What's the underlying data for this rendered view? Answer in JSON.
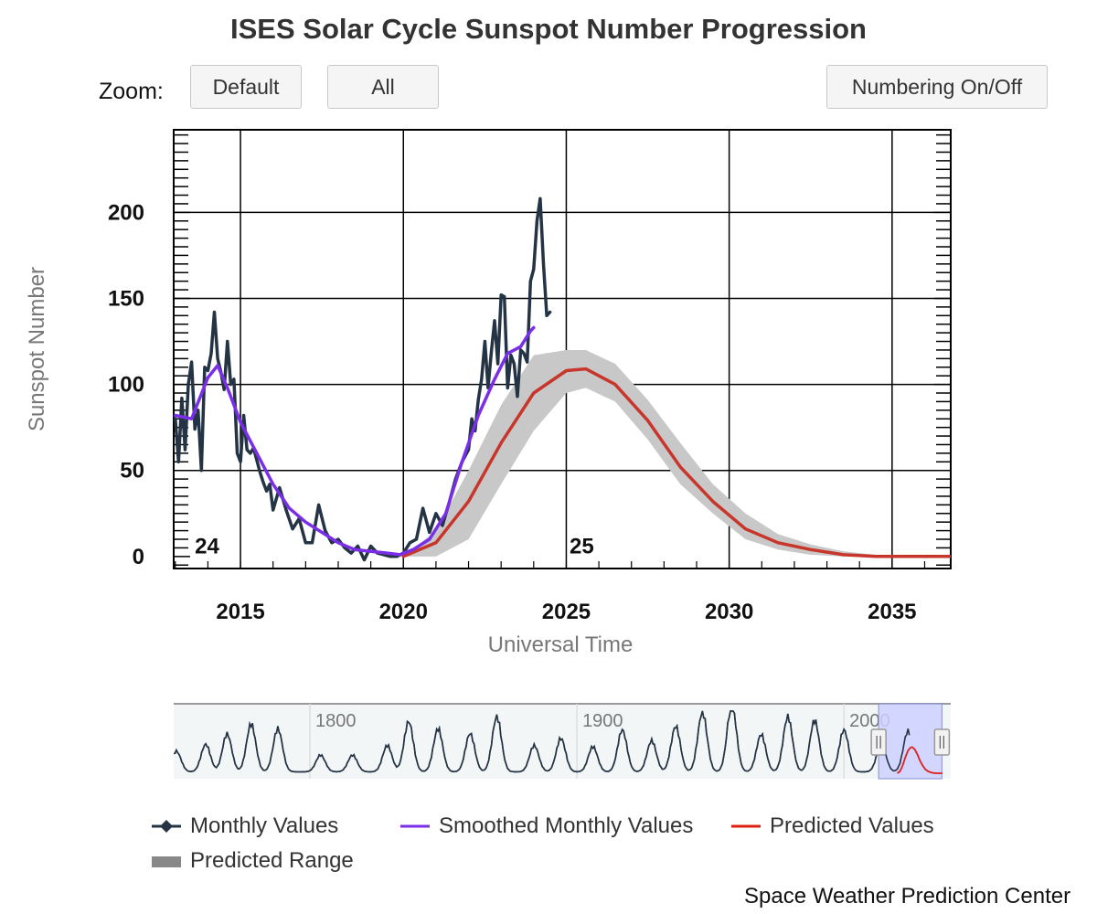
{
  "title": "ISES Solar Cycle Sunspot Number Progression",
  "zoom": {
    "label": "Zoom:",
    "default_label": "Default",
    "all_label": "All"
  },
  "numbering_label": "Numbering On/Off",
  "credit": "Space Weather Prediction Center",
  "colors": {
    "monthly": "#253445",
    "smoothed": "#7a2ee8",
    "predicted": "#c8352b",
    "range": "#c8c8c8",
    "navigator_fill": "#ccd0ff"
  },
  "legend": [
    {
      "label": "Monthly Values",
      "icon": "diamond-line-icon",
      "color": "#253445"
    },
    {
      "label": "Smoothed Monthly Values",
      "icon": "line-icon",
      "color": "#7a2ee8"
    },
    {
      "label": "Predicted Values",
      "icon": "line-icon",
      "color": "#e02010"
    },
    {
      "label": "Predicted Range",
      "icon": "band-icon",
      "color": "#888888"
    }
  ],
  "navigator": {
    "tick_labels": [
      "1800",
      "1900",
      "2000"
    ],
    "tick_values": [
      1800,
      1900,
      2000
    ],
    "xlim": [
      1749,
      2040
    ],
    "selected": [
      2013.0,
      2036.7
    ]
  },
  "chart_data": {
    "type": "line",
    "title": "ISES Solar Cycle Sunspot Number Progression",
    "xlabel": "Universal Time",
    "ylabel": "Sunspot Number",
    "xlim": [
      2012.95,
      2036.8
    ],
    "ylim": [
      -7,
      248
    ],
    "x_ticks": [
      2015,
      2020,
      2025,
      2030,
      2035
    ],
    "x_tick_labels": [
      "2015",
      "2020",
      "2025",
      "2030",
      "2035"
    ],
    "y_ticks": [
      0,
      50,
      100,
      150,
      200
    ],
    "y_tick_labels": [
      "0",
      "50",
      "100",
      "150",
      "200"
    ],
    "grid": true,
    "cycle_labels": [
      {
        "text": "24",
        "x": 2013.6,
        "y": 6
      },
      {
        "text": "25",
        "x": 2025.1,
        "y": 6
      }
    ],
    "series": [
      {
        "name": "Monthly Values",
        "x": [
          2013.0,
          2013.1,
          2013.2,
          2013.3,
          2013.4,
          2013.5,
          2013.6,
          2013.7,
          2013.8,
          2013.9,
          2014.0,
          2014.1,
          2014.2,
          2014.3,
          2014.4,
          2014.5,
          2014.6,
          2014.7,
          2014.8,
          2014.9,
          2015.0,
          2015.1,
          2015.2,
          2015.3,
          2015.4,
          2015.5,
          2015.6,
          2015.7,
          2015.8,
          2015.9,
          2016.0,
          2016.2,
          2016.4,
          2016.6,
          2016.8,
          2017.0,
          2017.2,
          2017.4,
          2017.6,
          2017.8,
          2018.0,
          2018.2,
          2018.4,
          2018.6,
          2018.8,
          2019.0,
          2019.2,
          2019.4,
          2019.6,
          2019.8,
          2020.0,
          2020.2,
          2020.4,
          2020.6,
          2020.8,
          2021.0,
          2021.2,
          2021.4,
          2021.6,
          2021.8,
          2022.0,
          2022.1,
          2022.2,
          2022.3,
          2022.4,
          2022.5,
          2022.6,
          2022.7,
          2022.8,
          2022.9,
          2023.0,
          2023.1,
          2023.2,
          2023.3,
          2023.4,
          2023.5,
          2023.6,
          2023.7,
          2023.8,
          2023.9,
          2024.0,
          2024.1,
          2024.2,
          2024.3,
          2024.4,
          2024.5
        ],
        "y": [
          80,
          55,
          92,
          62,
          100,
          113,
          74,
          85,
          50,
          110,
          108,
          118,
          142,
          115,
          107,
          97,
          125,
          100,
          103,
          60,
          55,
          82,
          62,
          60,
          63,
          56,
          49,
          43,
          38,
          42,
          27,
          40,
          27,
          16,
          22,
          8,
          8,
          30,
          15,
          8,
          10,
          5,
          2,
          6,
          -2,
          6,
          2,
          1,
          0,
          0,
          2,
          8,
          10,
          28,
          14,
          25,
          18,
          31,
          45,
          55,
          62,
          80,
          73,
          91,
          103,
          125,
          98,
          119,
          137,
          112,
          152,
          151,
          98,
          117,
          112,
          93,
          120,
          118,
          113,
          160,
          167,
          195,
          208,
          170,
          140,
          142
        ]
      },
      {
        "name": "Smoothed Monthly Values",
        "x": [
          2013.0,
          2013.5,
          2014.0,
          2014.3,
          2014.6,
          2015.0,
          2015.5,
          2016.0,
          2016.5,
          2017.0,
          2017.5,
          2018.0,
          2018.5,
          2019.0,
          2019.5,
          2019.9,
          2020.3,
          2020.8,
          2021.3,
          2021.8,
          2022.3,
          2022.8,
          2023.2,
          2023.6,
          2023.9,
          2024.0
        ],
        "y": [
          82,
          80,
          104,
          111,
          98,
          78,
          60,
          42,
          28,
          20,
          14,
          8,
          4,
          3,
          2,
          1,
          4,
          10,
          25,
          55,
          82,
          103,
          118,
          122,
          131,
          133
        ]
      },
      {
        "name": "Predicted Values",
        "x": [
          2020.0,
          2021.0,
          2022.0,
          2023.0,
          2024.0,
          2025.0,
          2025.6,
          2026.5,
          2027.5,
          2028.5,
          2029.5,
          2030.5,
          2031.5,
          2032.5,
          2033.5,
          2034.5,
          2035.5,
          2036.8
        ],
        "y": [
          0,
          8,
          32,
          66,
          95,
          108,
          109,
          100,
          79,
          52,
          32,
          16,
          8,
          4,
          1,
          0,
          0,
          0
        ]
      },
      {
        "name": "Predicted Range",
        "type": "area-range",
        "x": [
          2020.0,
          2021.0,
          2022.0,
          2023.0,
          2024.0,
          2025.0,
          2025.6,
          2026.5,
          2027.5,
          2028.5,
          2029.5,
          2030.5,
          2031.5,
          2032.5,
          2033.5,
          2034.5,
          2035.5,
          2036.8
        ],
        "low": [
          0,
          0,
          10,
          42,
          73,
          95,
          98,
          90,
          68,
          42,
          25,
          10,
          4,
          1,
          0,
          0,
          0,
          0
        ],
        "high": [
          0,
          15,
          50,
          88,
          117,
          120,
          120,
          112,
          91,
          66,
          42,
          25,
          13,
          7,
          3,
          1,
          1,
          0
        ]
      }
    ]
  }
}
